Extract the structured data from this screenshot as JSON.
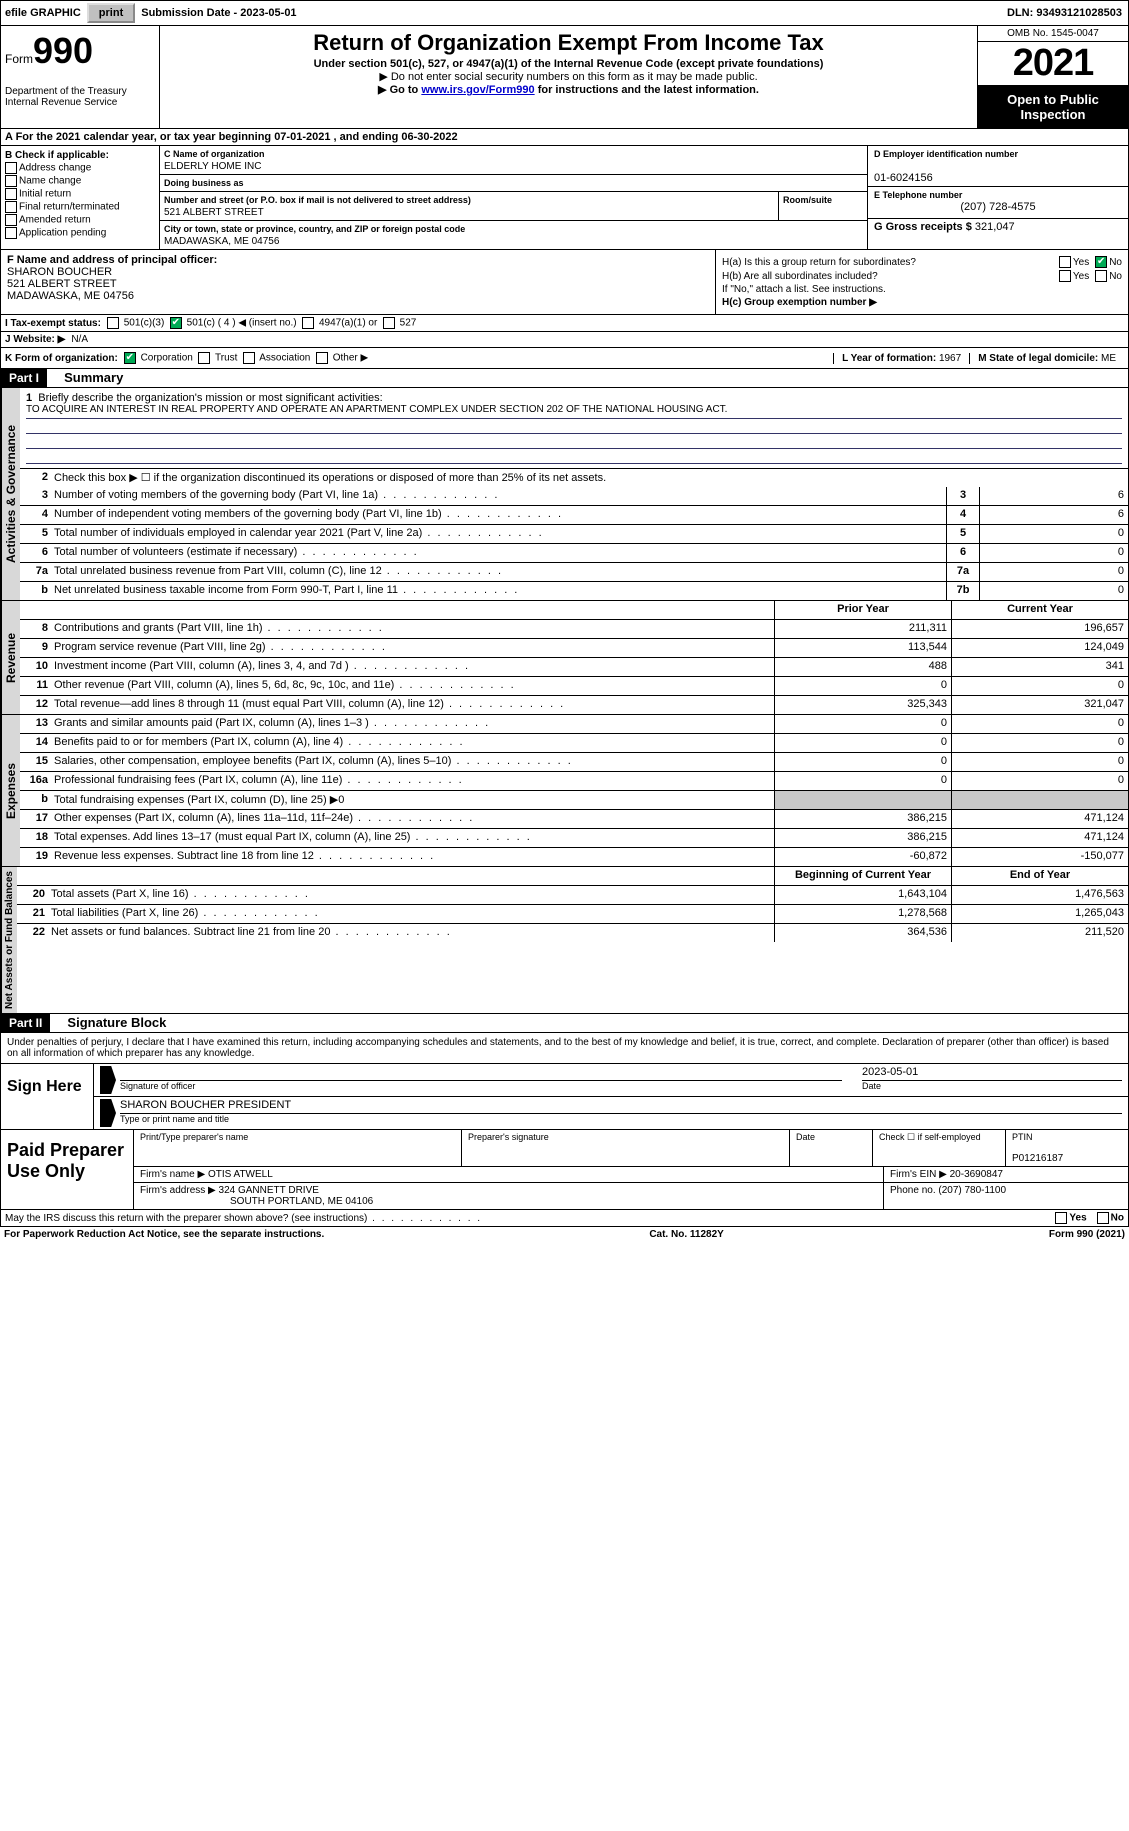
{
  "topbar": {
    "efile": "efile GRAPHIC",
    "print": "print",
    "subdate_lbl": "Submission Date - ",
    "subdate": "2023-05-01",
    "dln_lbl": "DLN: ",
    "dln": "93493121028503"
  },
  "header": {
    "form_word": "Form",
    "form_num": "990",
    "dept": "Department of the Treasury Internal Revenue Service",
    "title": "Return of Organization Exempt From Income Tax",
    "sub1": "Under section 501(c), 527, or 4947(a)(1) of the Internal Revenue Code (except private foundations)",
    "sub2": "▶ Do not enter social security numbers on this form as it may be made public.",
    "sub3_pre": "▶ Go to ",
    "sub3_link": "www.irs.gov/Form990",
    "sub3_post": " for instructions and the latest information.",
    "omb": "OMB No. 1545-0047",
    "year": "2021",
    "open": "Open to Public Inspection"
  },
  "section_a": "A For the 2021 calendar year, or tax year beginning 07-01-2021    , and ending 06-30-2022",
  "col_b": {
    "head": "B Check if applicable:",
    "opts": [
      "Address change",
      "Name change",
      "Initial return",
      "Final return/terminated",
      "Amended return",
      "Application pending"
    ]
  },
  "col_c": {
    "name_lbl": "C Name of organization",
    "name": "ELDERLY HOME INC",
    "dba_lbl": "Doing business as",
    "dba": "",
    "addr_lbl": "Number and street (or P.O. box if mail is not delivered to street address)",
    "room_lbl": "Room/suite",
    "addr": "521 ALBERT STREET",
    "city_lbl": "City or town, state or province, country, and ZIP or foreign postal code",
    "city": "MADAWASKA, ME  04756"
  },
  "col_d": {
    "ein_lbl": "D Employer identification number",
    "ein": "01-6024156",
    "tel_lbl": "E Telephone number",
    "tel": "(207) 728-4575",
    "gross_lbl": "G Gross receipts $ ",
    "gross": "321,047"
  },
  "f": {
    "lbl": "F Name and address of principal officer:",
    "name": "SHARON BOUCHER",
    "addr1": "521 ALBERT STREET",
    "addr2": "MADAWASKA, ME  04756"
  },
  "h": {
    "a": "H(a)  Is this a group return for subordinates?",
    "b": "H(b)  Are all subordinates included?",
    "b_note": "If \"No,\" attach a list. See instructions.",
    "c": "H(c)  Group exemption number ▶",
    "yes": "Yes",
    "no": "No"
  },
  "i": {
    "lbl": "I   Tax-exempt status:",
    "o1": "501(c)(3)",
    "o2": "501(c) ( 4 ) ◀ (insert no.)",
    "o3": "4947(a)(1) or",
    "o4": "527"
  },
  "j": {
    "lbl": "J   Website: ▶",
    "val": "  N/A"
  },
  "k": {
    "lbl": "K Form of organization:",
    "o1": "Corporation",
    "o2": "Trust",
    "o3": "Association",
    "o4": "Other ▶"
  },
  "l": {
    "lbl": "L Year of formation: ",
    "val": "1967"
  },
  "m": {
    "lbl": "M State of legal domicile: ",
    "val": "ME"
  },
  "part1": {
    "hdr": "Part I",
    "title": "Summary",
    "side_ag": "Activities & Governance",
    "side_rev": "Revenue",
    "side_exp": "Expenses",
    "side_net": "Net Assets or Fund Balances",
    "l1_lbl": "Briefly describe the organization's mission or most significant activities:",
    "l1_val": "TO ACQUIRE AN INTEREST IN REAL PROPERTY AND OPERATE AN APARTMENT COMPLEX UNDER SECTION 202 OF THE NATIONAL HOUSING ACT.",
    "l2": "Check this box ▶ ☐  if the organization discontinued its operations or disposed of more than 25% of its net assets.",
    "lines_ag": [
      {
        "n": "3",
        "t": "Number of voting members of the governing body (Part VI, line 1a)",
        "b": "3",
        "v": "6"
      },
      {
        "n": "4",
        "t": "Number of independent voting members of the governing body (Part VI, line 1b)",
        "b": "4",
        "v": "6"
      },
      {
        "n": "5",
        "t": "Total number of individuals employed in calendar year 2021 (Part V, line 2a)",
        "b": "5",
        "v": "0"
      },
      {
        "n": "6",
        "t": "Total number of volunteers (estimate if necessary)",
        "b": "6",
        "v": "0"
      },
      {
        "n": "7a",
        "t": "Total unrelated business revenue from Part VIII, column (C), line 12",
        "b": "7a",
        "v": "0"
      },
      {
        "n": "b",
        "t": "Net unrelated business taxable income from Form 990-T, Part I, line 11",
        "b": "7b",
        "v": "0"
      }
    ],
    "col_prior": "Prior Year",
    "col_curr": "Current Year",
    "rev": [
      {
        "n": "8",
        "t": "Contributions and grants (Part VIII, line 1h)",
        "p": "211,311",
        "c": "196,657"
      },
      {
        "n": "9",
        "t": "Program service revenue (Part VIII, line 2g)",
        "p": "113,544",
        "c": "124,049"
      },
      {
        "n": "10",
        "t": "Investment income (Part VIII, column (A), lines 3, 4, and 7d )",
        "p": "488",
        "c": "341"
      },
      {
        "n": "11",
        "t": "Other revenue (Part VIII, column (A), lines 5, 6d, 8c, 9c, 10c, and 11e)",
        "p": "0",
        "c": "0"
      },
      {
        "n": "12",
        "t": "Total revenue—add lines 8 through 11 (must equal Part VIII, column (A), line 12)",
        "p": "325,343",
        "c": "321,047"
      }
    ],
    "exp": [
      {
        "n": "13",
        "t": "Grants and similar amounts paid (Part IX, column (A), lines 1–3 )",
        "p": "0",
        "c": "0"
      },
      {
        "n": "14",
        "t": "Benefits paid to or for members (Part IX, column (A), line 4)",
        "p": "0",
        "c": "0"
      },
      {
        "n": "15",
        "t": "Salaries, other compensation, employee benefits (Part IX, column (A), lines 5–10)",
        "p": "0",
        "c": "0"
      },
      {
        "n": "16a",
        "t": "Professional fundraising fees (Part IX, column (A), line 11e)",
        "p": "0",
        "c": "0"
      },
      {
        "n": "b",
        "t": "Total fundraising expenses (Part IX, column (D), line 25) ▶0",
        "p": "",
        "c": "",
        "shaded": true
      },
      {
        "n": "17",
        "t": "Other expenses (Part IX, column (A), lines 11a–11d, 11f–24e)",
        "p": "386,215",
        "c": "471,124"
      },
      {
        "n": "18",
        "t": "Total expenses. Add lines 13–17 (must equal Part IX, column (A), line 25)",
        "p": "386,215",
        "c": "471,124"
      },
      {
        "n": "19",
        "t": "Revenue less expenses. Subtract line 18 from line 12",
        "p": "-60,872",
        "c": "-150,077"
      }
    ],
    "col_beg": "Beginning of Current Year",
    "col_end": "End of Year",
    "net": [
      {
        "n": "20",
        "t": "Total assets (Part X, line 16)",
        "p": "1,643,104",
        "c": "1,476,563"
      },
      {
        "n": "21",
        "t": "Total liabilities (Part X, line 26)",
        "p": "1,278,568",
        "c": "1,265,043"
      },
      {
        "n": "22",
        "t": "Net assets or fund balances. Subtract line 21 from line 20",
        "p": "364,536",
        "c": "211,520"
      }
    ]
  },
  "part2": {
    "hdr": "Part II",
    "title": "Signature Block",
    "penalty": "Under penalties of perjury, I declare that I have examined this return, including accompanying schedules and statements, and to the best of my knowledge and belief, it is true, correct, and complete. Declaration of preparer (other than officer) is based on all information of which preparer has any knowledge.",
    "sign_here": "Sign Here",
    "sig_officer": "Signature of officer",
    "sig_date": "2023-05-01",
    "date_lbl": "Date",
    "officer_name": "SHARON BOUCHER  PRESIDENT",
    "type_name": "Type or print name and title",
    "paid": "Paid Preparer Use Only",
    "prep_name_lbl": "Print/Type preparer's name",
    "prep_sig_lbl": "Preparer's signature",
    "check_self": "Check ☐ if self-employed",
    "ptin_lbl": "PTIN",
    "ptin": "P01216187",
    "firm_name_lbl": "Firm's name    ▶ ",
    "firm_name": "OTIS ATWELL",
    "firm_ein_lbl": "Firm's EIN ▶ ",
    "firm_ein": "20-3690847",
    "firm_addr_lbl": "Firm's address ▶ ",
    "firm_addr1": "324 GANNETT DRIVE",
    "firm_addr2": "SOUTH PORTLAND, ME  04106",
    "phone_lbl": "Phone no. ",
    "phone": "(207) 780-1100",
    "discuss": "May the IRS discuss this return with the preparer shown above? (see instructions)"
  },
  "footer": {
    "pra": "For Paperwork Reduction Act Notice, see the separate instructions.",
    "cat": "Cat. No. 11282Y",
    "form": "Form 990 (2021)"
  }
}
